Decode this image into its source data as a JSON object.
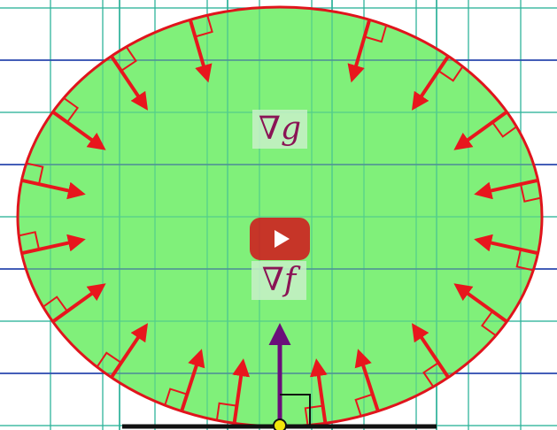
{
  "labels": {
    "grad_g": "∇g",
    "grad_f": "∇f"
  },
  "icons": {
    "play": "play-icon"
  },
  "colors": {
    "fill": "#80f07a",
    "boundary": "#e0141c",
    "arrow": "#e8161d",
    "grid_major": "#2a3fb0",
    "grid_minor": "#2fb39a",
    "grad_f_arrow": "#6a0f7a",
    "base_line": "#111111",
    "point": "#f2e60a",
    "label_text": "#8a1455",
    "play_bg": "#cd201f"
  }
}
